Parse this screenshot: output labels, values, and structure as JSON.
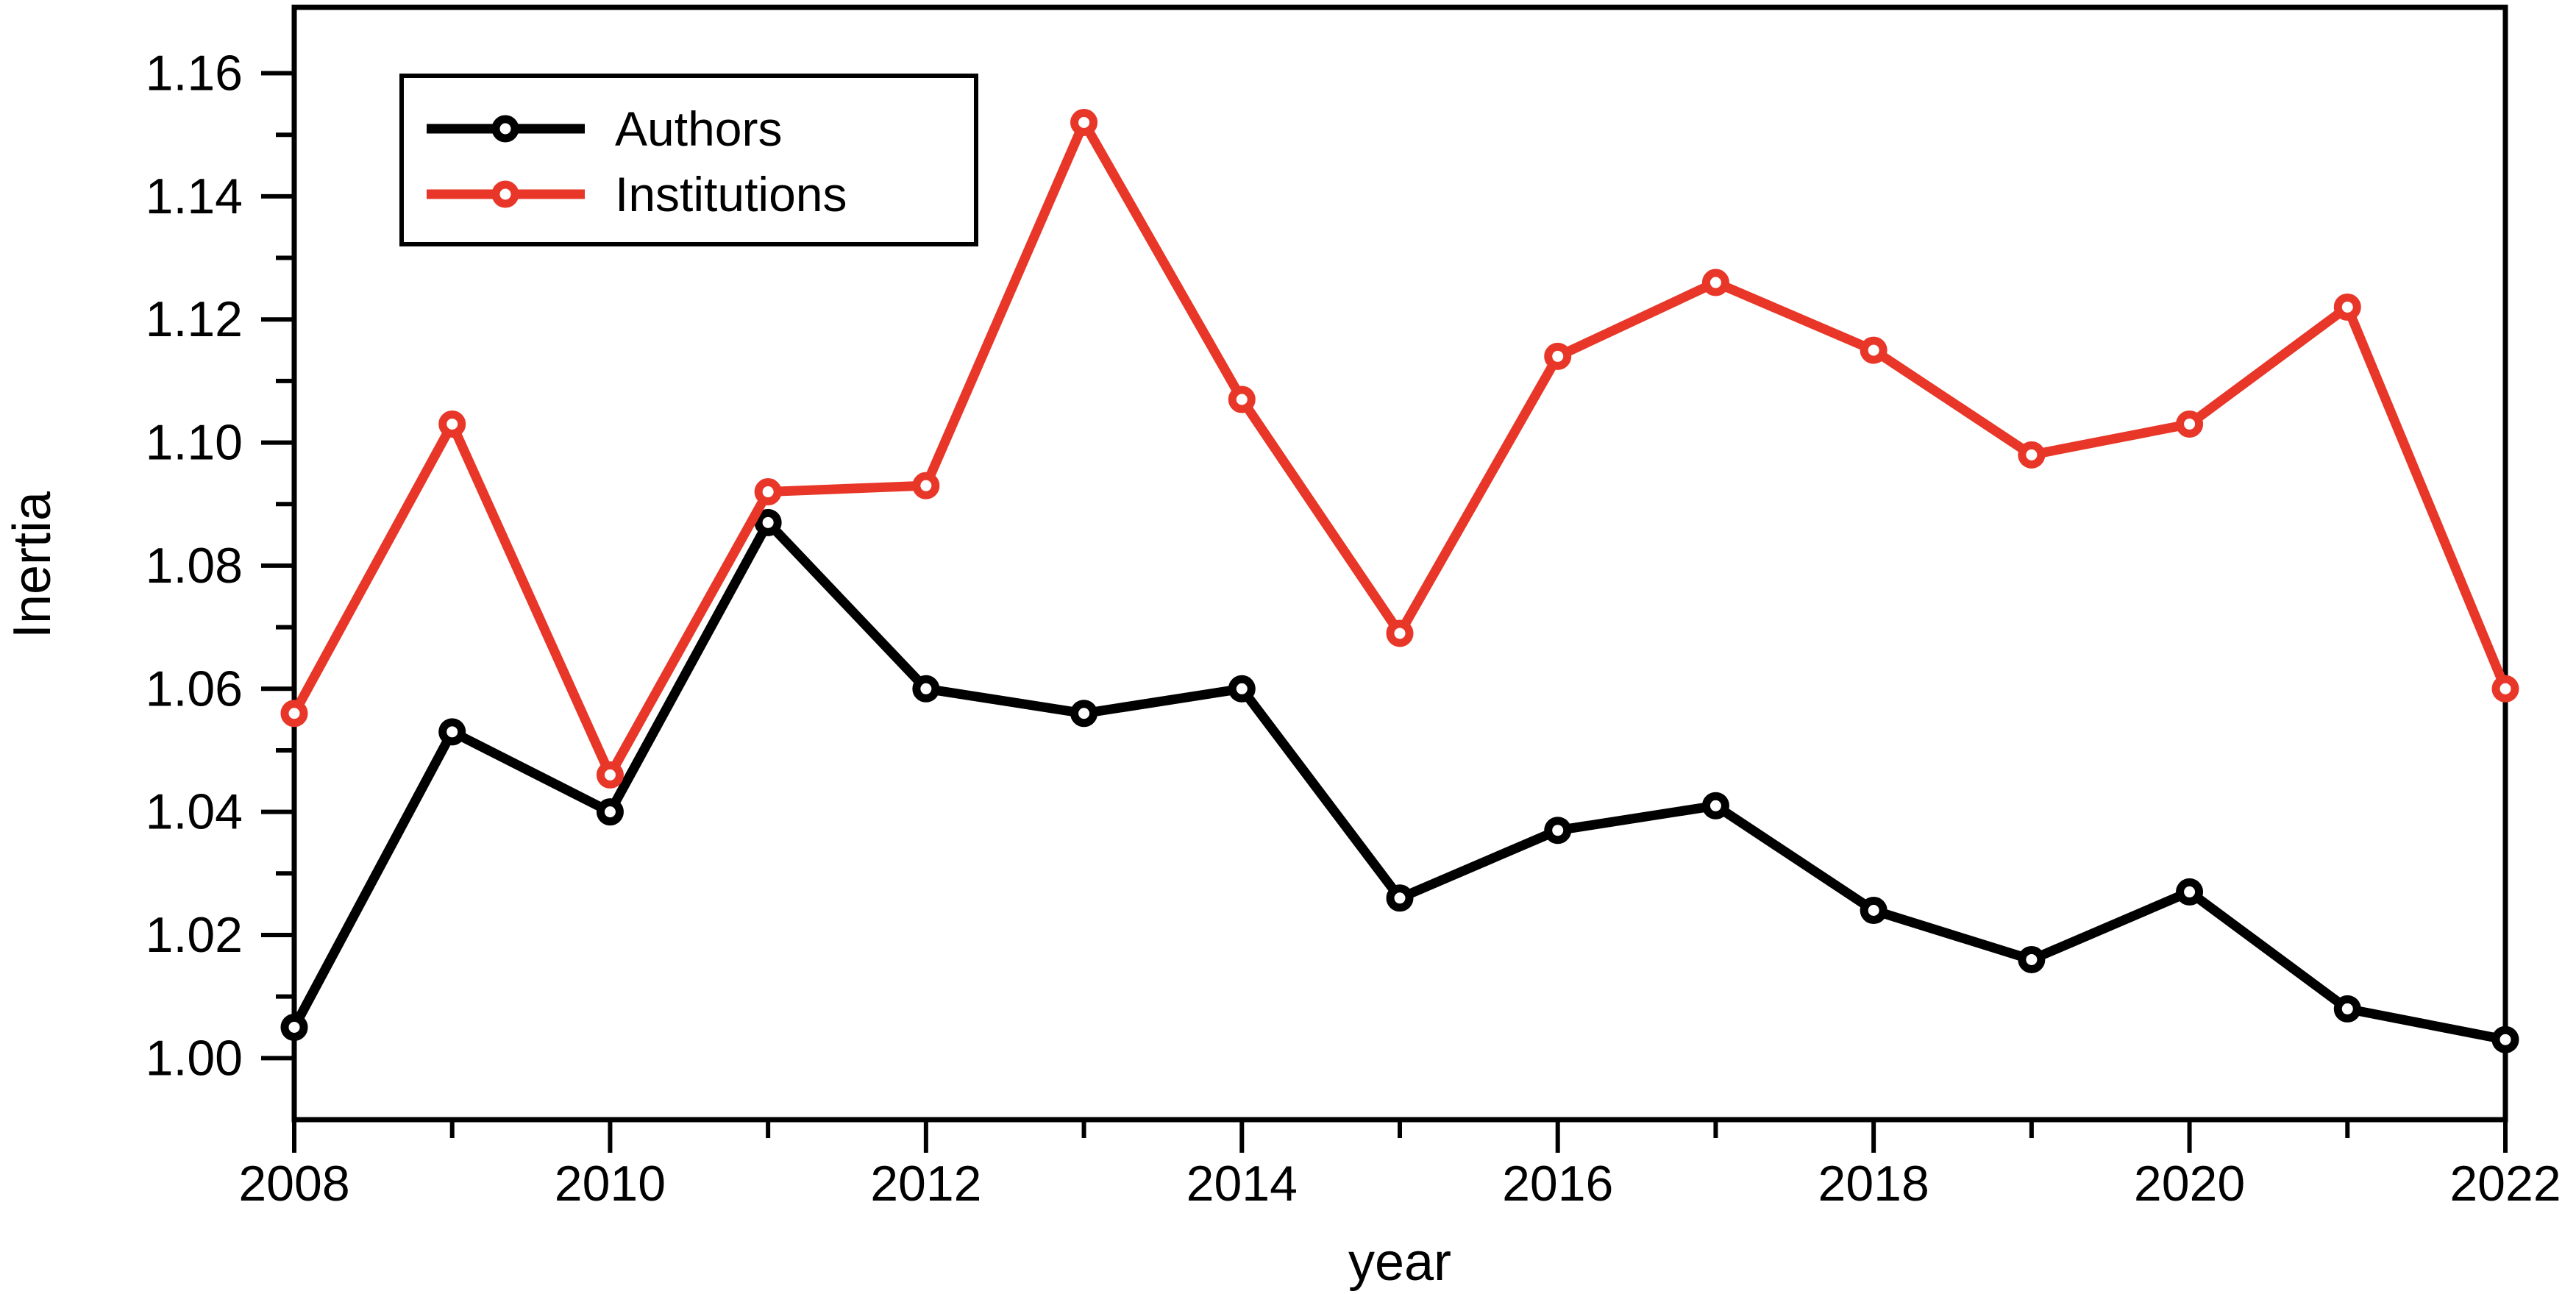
{
  "figure": {
    "background": "#ffffff",
    "frame_color": "#000000"
  },
  "legend": {
    "items": [
      {
        "label": "Authors",
        "color": "#000000"
      },
      {
        "label": "Institutions",
        "color": "#e83728"
      }
    ]
  },
  "chart_data": {
    "type": "line",
    "title": "",
    "xlabel": "year",
    "ylabel": "Inertia",
    "x": [
      2008,
      2009,
      2010,
      2011,
      2012,
      2013,
      2014,
      2015,
      2016,
      2017,
      2018,
      2019,
      2020,
      2021,
      2022
    ],
    "series": [
      {
        "name": "Authors",
        "color": "#000000",
        "marker": "open-circle",
        "values": [
          1.005,
          1.053,
          1.04,
          1.087,
          1.06,
          1.056,
          1.06,
          1.026,
          1.037,
          1.041,
          1.024,
          1.016,
          1.027,
          1.008,
          1.003
        ]
      },
      {
        "name": "Institutions",
        "color": "#e83728",
        "marker": "open-circle",
        "values": [
          1.056,
          1.103,
          1.046,
          1.092,
          1.093,
          1.152,
          1.107,
          1.069,
          1.114,
          1.126,
          1.115,
          1.098,
          1.103,
          1.122,
          1.06
        ]
      }
    ],
    "xlim": [
      2008,
      2022
    ],
    "ylim": [
      0.99,
      1.1707
    ],
    "x_major_tick_labels": [
      "2008",
      "2010",
      "2012",
      "2014",
      "2016",
      "2018",
      "2020",
      "2022"
    ],
    "x_minor_ticks": [
      2009,
      2011,
      2013,
      2015,
      2017,
      2019,
      2021
    ],
    "y_major_tick_labels": [
      "1.00",
      "1.02",
      "1.04",
      "1.06",
      "1.08",
      "1.10",
      "1.12",
      "1.14",
      "1.16"
    ],
    "y_minor_ticks": [
      1.01,
      1.03,
      1.05,
      1.07,
      1.09,
      1.11,
      1.13,
      1.15
    ],
    "grid": false,
    "legend_position": "top-left"
  }
}
